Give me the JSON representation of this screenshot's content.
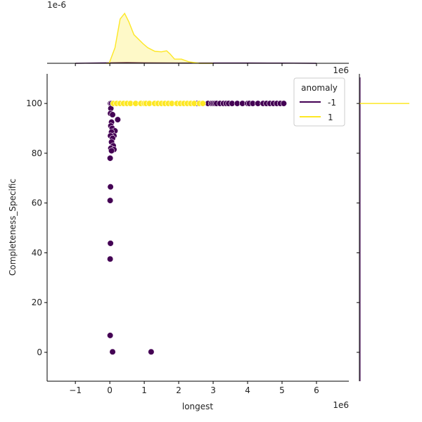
{
  "chart_data": {
    "type": "scatter",
    "kind": "jointplot",
    "xlabel": "longest",
    "ylabel": "Completeness_Specific",
    "x_offset_label": "1e6",
    "top_marginal_offset_label": "1e-6",
    "xlim": [
      -1.82,
      6.94
    ],
    "ylim": [
      -11.6,
      111.9
    ],
    "xticks": [
      -1,
      0,
      1,
      2,
      3,
      4,
      5,
      6
    ],
    "xtick_labels": [
      "−1",
      "0",
      "1",
      "2",
      "3",
      "4",
      "5",
      "6"
    ],
    "yticks": [
      0,
      20,
      40,
      60,
      80,
      100
    ],
    "ytick_labels": [
      "0",
      "20",
      "40",
      "60",
      "80",
      "100"
    ],
    "grid": false,
    "legend": {
      "title": "anomaly",
      "placement": "top-right",
      "entries": [
        {
          "label": "-1",
          "color": "#440154"
        },
        {
          "label": "1",
          "color": "#fde725"
        }
      ]
    },
    "series": [
      {
        "name": "-1",
        "color": "#440154",
        "points": [
          [
            0.02,
            100
          ],
          [
            0.05,
            100
          ],
          [
            0.03,
            98
          ],
          [
            0.02,
            96
          ],
          [
            0.08,
            95.5
          ],
          [
            0.23,
            93.5
          ],
          [
            0.05,
            92.5
          ],
          [
            0.03,
            91
          ],
          [
            0.07,
            90
          ],
          [
            0.15,
            89
          ],
          [
            0.05,
            88.5
          ],
          [
            0.12,
            87
          ],
          [
            0.02,
            87
          ],
          [
            0.08,
            86
          ],
          [
            0.05,
            84.5
          ],
          [
            0.1,
            83
          ],
          [
            0.03,
            82
          ],
          [
            0.12,
            81.5
          ],
          [
            0.05,
            81
          ],
          [
            0.01,
            78
          ],
          [
            0.02,
            66.5
          ],
          [
            0.01,
            61
          ],
          [
            0.02,
            43.8
          ],
          [
            0.01,
            37.5
          ],
          [
            0.01,
            6.8
          ],
          [
            0.08,
            0.2
          ],
          [
            1.2,
            0.2
          ],
          [
            2.53,
            100
          ],
          [
            2.68,
            100
          ],
          [
            2.85,
            100
          ],
          [
            2.95,
            100
          ],
          [
            3.0,
            100
          ],
          [
            3.05,
            100
          ],
          [
            3.1,
            100
          ],
          [
            3.2,
            100
          ],
          [
            3.3,
            100
          ],
          [
            3.38,
            100
          ],
          [
            3.45,
            100
          ],
          [
            3.55,
            100
          ],
          [
            3.7,
            100
          ],
          [
            3.85,
            100
          ],
          [
            4.0,
            100
          ],
          [
            4.05,
            100
          ],
          [
            4.15,
            100
          ],
          [
            4.3,
            100
          ],
          [
            4.45,
            100
          ],
          [
            4.55,
            100
          ],
          [
            4.65,
            100
          ],
          [
            4.75,
            100
          ],
          [
            4.85,
            100
          ],
          [
            4.95,
            100
          ],
          [
            5.05,
            100
          ]
        ]
      },
      {
        "name": "1",
        "color": "#fde725",
        "points": [
          [
            0.1,
            100
          ],
          [
            0.2,
            100
          ],
          [
            0.3,
            100
          ],
          [
            0.4,
            100
          ],
          [
            0.5,
            100
          ],
          [
            0.6,
            100
          ],
          [
            0.75,
            100
          ],
          [
            0.9,
            100
          ],
          [
            1.0,
            100
          ],
          [
            1.05,
            100
          ],
          [
            1.15,
            100
          ],
          [
            1.3,
            100
          ],
          [
            1.4,
            100
          ],
          [
            1.5,
            100
          ],
          [
            1.6,
            100
          ],
          [
            1.7,
            100
          ],
          [
            1.8,
            100
          ],
          [
            1.95,
            100
          ],
          [
            2.05,
            100
          ],
          [
            2.15,
            100
          ],
          [
            2.25,
            100
          ],
          [
            2.35,
            100
          ],
          [
            2.45,
            100
          ],
          [
            2.6,
            100
          ],
          [
            2.7,
            100
          ]
        ]
      }
    ],
    "top_marginal_kde": {
      "ylim": [
        0,
        1.0
      ],
      "series": [
        {
          "name": "1",
          "color": "#fde725",
          "x": [
            -0.1,
            -0.02,
            0.15,
            0.3,
            0.43,
            0.55,
            0.7,
            0.96,
            1.1,
            1.31,
            1.5,
            1.65,
            1.75,
            1.88,
            2.08,
            2.29,
            2.6,
            3.0
          ],
          "y": [
            0,
            0,
            0.3,
            0.85,
            0.96,
            0.8,
            0.55,
            0.38,
            0.3,
            0.23,
            0.22,
            0.24,
            0.18,
            0.08,
            0.08,
            0.03,
            0,
            0
          ]
        },
        {
          "name": "-1",
          "color": "#440154",
          "x": [
            -1.0,
            0,
            0.5,
            1,
            2,
            3,
            4,
            5,
            6
          ],
          "y": [
            0,
            0.01,
            0.015,
            0.01,
            0.006,
            0.006,
            0.005,
            0.004,
            0
          ]
        }
      ]
    },
    "right_marginal_kde": {
      "series": [
        {
          "name": "1",
          "color": "#fde725",
          "note_value": 100
        },
        {
          "name": "-1",
          "color": "#440154"
        }
      ]
    }
  }
}
